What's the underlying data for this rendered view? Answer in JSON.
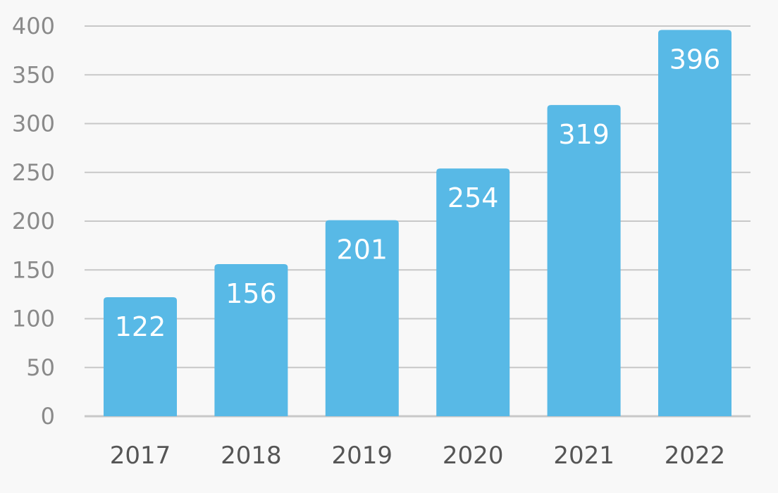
{
  "chart_data": {
    "type": "bar",
    "categories": [
      "2017",
      "2018",
      "2019",
      "2020",
      "2021",
      "2022"
    ],
    "values": [
      122,
      156,
      201,
      254,
      319,
      396
    ],
    "data_labels": [
      "122",
      "156",
      "201",
      "254",
      "319",
      "396"
    ],
    "title": "",
    "xlabel": "",
    "ylabel": "",
    "ylim": [
      0,
      400
    ],
    "yticks": [
      "0",
      "50",
      "100",
      "150",
      "200",
      "250",
      "300",
      "350",
      "400"
    ],
    "grid": true,
    "legend": "none",
    "colors": {
      "bar": "#58b9e6",
      "grid": "#c8c8c8",
      "background": "#f8f8f8"
    }
  }
}
